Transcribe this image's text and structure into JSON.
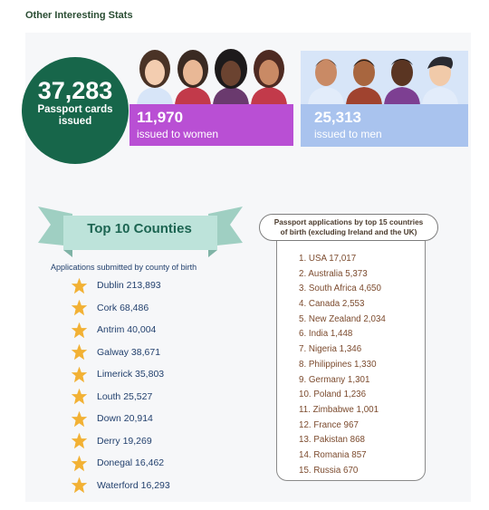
{
  "heading": "Other Interesting Stats",
  "total": {
    "value": "37,283",
    "label_line1": "Passport cards",
    "label_line2": "issued"
  },
  "women": {
    "value": "11,970",
    "label": "issued to women"
  },
  "men": {
    "value": "25,313",
    "label": "issued to men"
  },
  "colors": {
    "green": "#17664a",
    "purple": "#b94fd4",
    "blue": "#a9c3ee",
    "star": "#f2b134",
    "teal": "#bde3da"
  },
  "counties": {
    "title": "Top 10 Counties",
    "subtitle": "Applications submitted by county of birth",
    "items": [
      "Dublin 213,893",
      "Cork 68,486",
      "Antrim 40,004",
      "Galway 38,671",
      "Limerick 35,803",
      "Louth 25,527",
      "Down 20,914",
      "Derry 19,269",
      "Donegal 16,462",
      "Waterford 16,293"
    ]
  },
  "countries": {
    "title_line1": "Passport applications by top 15 countries",
    "title_line2": "of birth (excluding Ireland and the UK)",
    "items": [
      "1. USA 17,017",
      "2. Australia 5,373",
      "3. South Africa 4,650",
      "4. Canada 2,553",
      "5. New Zealand 2,034",
      "6. India 1,448",
      "7. Nigeria 1,346",
      "8. Philippines 1,330",
      "9. Germany 1,301",
      "10. Poland 1,236",
      "11. Zimbabwe 1,001",
      "12. France 967",
      "13. Pakistan 868",
      "14. Romania 857",
      "15. Russia 670"
    ]
  }
}
